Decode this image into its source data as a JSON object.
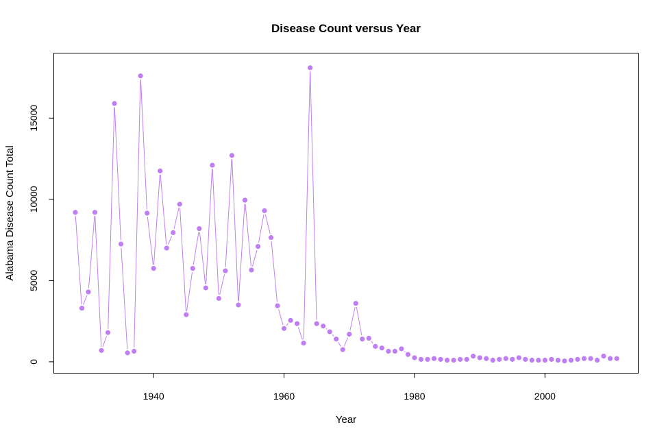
{
  "chart_data": {
    "type": "line",
    "title": "Disease Count versus Year",
    "xlabel": "Year",
    "ylabel": "Alabama Disease Count Total",
    "xlim": [
      1924.7,
      2014.3
    ],
    "ylim": [
      -700,
      19000
    ],
    "x_ticks": [
      1940,
      1960,
      1980,
      2000
    ],
    "y_ticks": [
      0,
      5000,
      10000,
      15000
    ],
    "color": "#bf7ff2",
    "grid": false,
    "legend": "none",
    "series": [
      {
        "x": [
          1928,
          1929,
          1930,
          1931,
          1932,
          1933,
          1934,
          1935,
          1936,
          1937,
          1938,
          1939,
          1940,
          1941,
          1942,
          1943,
          1944,
          1945,
          1946,
          1947,
          1948,
          1949,
          1950,
          1951,
          1952,
          1953,
          1954,
          1955,
          1956,
          1957,
          1958,
          1959,
          1960,
          1961,
          1962,
          1963,
          1964,
          1965,
          1966,
          1967,
          1968,
          1969,
          1970,
          1971,
          1972,
          1973,
          1974,
          1975,
          1976,
          1977,
          1978,
          1979,
          1980,
          1981,
          1982,
          1983,
          1984,
          1985,
          1986,
          1987,
          1988,
          1989,
          1990,
          1991,
          1992,
          1993,
          1994,
          1995,
          1996,
          1997,
          1998,
          1999,
          2000,
          2001,
          2002,
          2003,
          2004,
          2005,
          2006,
          2007,
          2008,
          2009,
          2010,
          2011
        ],
        "y": [
          9200,
          3300,
          4300,
          9200,
          700,
          1800,
          15900,
          7250,
          550,
          650,
          17600,
          9150,
          5750,
          11750,
          7000,
          7950,
          9700,
          2900,
          5750,
          8200,
          4550,
          12100,
          3900,
          5600,
          12700,
          3500,
          9950,
          5650,
          7100,
          9300,
          7650,
          3450,
          2050,
          2550,
          2350,
          1150,
          18100,
          2350,
          2200,
          1850,
          1400,
          750,
          1700,
          3600,
          1400,
          1450,
          950,
          850,
          650,
          650,
          800,
          450,
          250,
          150,
          150,
          200,
          150,
          100,
          100,
          150,
          150,
          350,
          250,
          200,
          100,
          150,
          200,
          150,
          250,
          150,
          100,
          100,
          100,
          150,
          100,
          50,
          100,
          150,
          200,
          200,
          100,
          350,
          200,
          200
        ]
      }
    ]
  }
}
